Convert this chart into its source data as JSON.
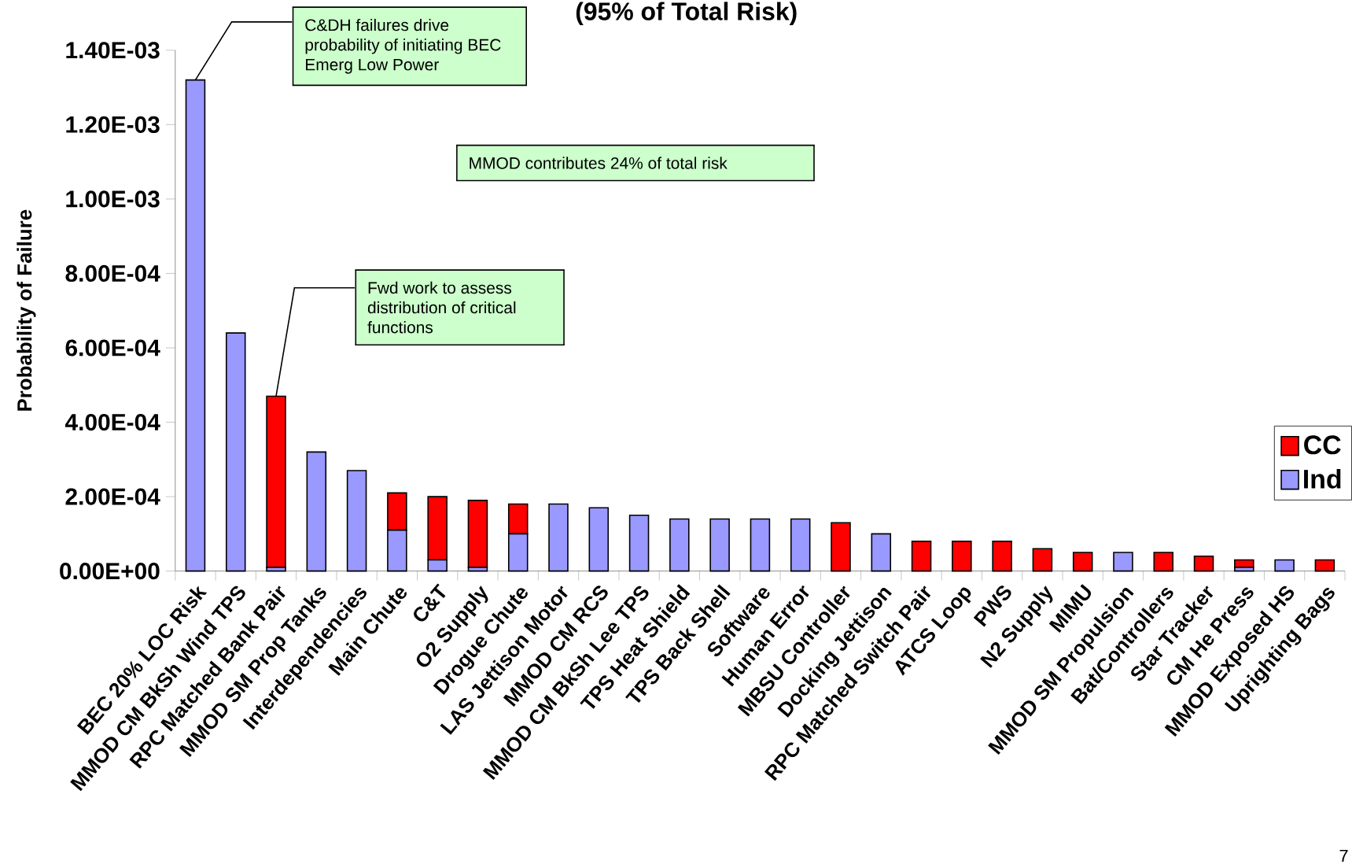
{
  "chart_data": {
    "type": "bar",
    "stacked": true,
    "title": "(95% of Total Risk)",
    "ylabel": "Probability of Failure",
    "categories": [
      "BEC 20% LOC Risk",
      "MMOD CM BkSh Wind TPS",
      "RPC Matched Bank Pair",
      "MMOD SM Prop Tanks",
      "Interdependencies",
      "Main Chute",
      "C&T",
      "O2 Supply",
      "Drogue Chute",
      "LAS Jettison Motor",
      "MMOD CM RCS",
      "MMOD CM BkSh Lee TPS",
      "TPS Heat Shield",
      "TPS Back Shell",
      "Software",
      "Human Error",
      "MBSU Controller",
      "Docking Jettison",
      "RPC Matched Switch Pair",
      "ATCS Loop",
      "PWS",
      "N2 Supply",
      "MIMU",
      "MMOD SM Propulsion",
      "Bat/Controllers",
      "Star Tracker",
      "CM He Press",
      "MMOD Exposed HS",
      "Uprighting Bags"
    ],
    "series": [
      {
        "name": "Ind",
        "color": "#9999ff",
        "values": [
          0.00132,
          0.00064,
          1e-05,
          0.00032,
          0.00027,
          0.00011,
          3e-05,
          1e-05,
          0.0001,
          0.00018,
          0.00017,
          0.00015,
          0.00014,
          0.00014,
          0.00014,
          0.00014,
          null,
          0.0001,
          null,
          null,
          null,
          null,
          null,
          5e-05,
          null,
          null,
          1e-05,
          3e-05,
          null
        ]
      },
      {
        "name": "CC",
        "color": "#ff0000",
        "values": [
          null,
          null,
          0.00046,
          null,
          null,
          0.0001,
          0.00017,
          0.00018,
          8e-05,
          null,
          null,
          null,
          null,
          null,
          null,
          null,
          0.00013,
          null,
          8e-05,
          8e-05,
          8e-05,
          6e-05,
          5e-05,
          null,
          5e-05,
          4e-05,
          2e-05,
          null,
          3e-05
        ]
      }
    ],
    "ylim": [
      0,
      0.0014
    ],
    "yticks": [
      {
        "value": 0,
        "label": "0.00E+00"
      },
      {
        "value": 0.0002,
        "label": "2.00E-04"
      },
      {
        "value": 0.0004,
        "label": "4.00E-04"
      },
      {
        "value": 0.0006,
        "label": "6.00E-04"
      },
      {
        "value": 0.0008,
        "label": "8.00E-04"
      },
      {
        "value": 0.001,
        "label": "1.00E-03"
      },
      {
        "value": 0.0012,
        "label": "1.20E-03"
      },
      {
        "value": 0.0014,
        "label": "1.40E-03"
      }
    ],
    "legend": "right",
    "annotations": [
      {
        "text": "C&DH failures drive probability of initiating BEC Emerg Low Power",
        "x": "BEC 20% LOC Risk",
        "y": 0.00132
      },
      "MMOD contributes 24% of total risk",
      {
        "text": "Fwd work to assess distribution of critical functions",
        "x": "RPC Matched Bank Pair",
        "y": 0.00047
      },
      "7"
    ]
  }
}
